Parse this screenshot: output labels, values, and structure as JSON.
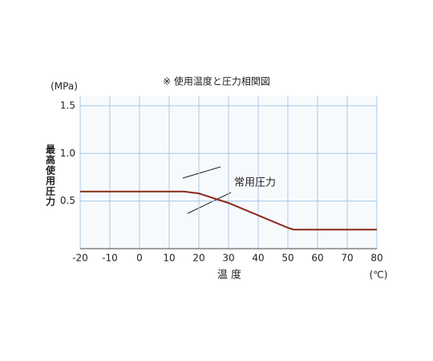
{
  "chart_data": {
    "type": "line",
    "title": "※ 使用温度と圧力相関図",
    "ylabel": "最高使用圧力",
    "y_unit": "(MPa)",
    "xlabel": "温 度",
    "x_unit": "(℃)",
    "annotation": "常用圧力",
    "x": [
      -20,
      10,
      15,
      20,
      30,
      40,
      50,
      52,
      80
    ],
    "values": [
      0.6,
      0.6,
      0.6,
      0.58,
      0.48,
      0.35,
      0.22,
      0.2,
      0.2
    ],
    "color": "#8b2a1a",
    "xlim": [
      -20,
      80
    ],
    "xticks": [
      -20,
      -10,
      0,
      10,
      20,
      30,
      40,
      50,
      60,
      70,
      80
    ],
    "ylim": [
      0,
      1.6
    ],
    "yticks": [
      0.5,
      {
        "value": 1,
        "label": "1.0"
      },
      1.5
    ],
    "grid": true
  }
}
